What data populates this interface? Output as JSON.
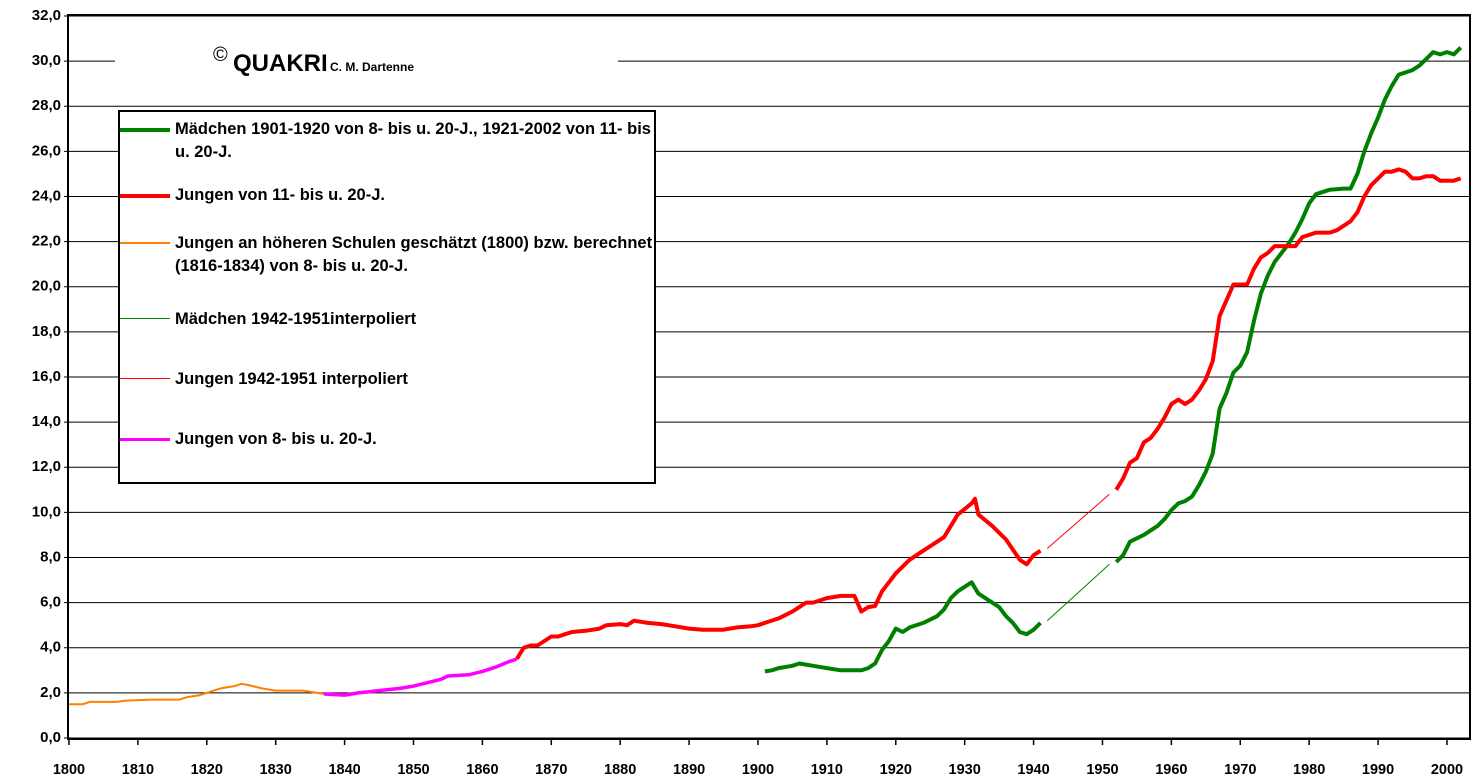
{
  "chart_data": {
    "type": "line",
    "copyright": {
      "symbol": "©",
      "name": "QUAKRI",
      "author": "C. M. Dartenne"
    },
    "xlim": [
      1800,
      2003.2
    ],
    "ylim": [
      0,
      32
    ],
    "xticks": [
      1800,
      1810,
      1820,
      1830,
      1840,
      1850,
      1860,
      1870,
      1880,
      1890,
      1900,
      1910,
      1920,
      1930,
      1940,
      1950,
      1960,
      1970,
      1980,
      1990,
      2000
    ],
    "yticks": [
      {
        "value": 0,
        "label": "0,0"
      },
      {
        "value": 2,
        "label": "2,0"
      },
      {
        "value": 4,
        "label": "4,0"
      },
      {
        "value": 6,
        "label": "6,0"
      },
      {
        "value": 8,
        "label": "8,0"
      },
      {
        "value": 10,
        "label": "10,0"
      },
      {
        "value": 12,
        "label": "12,0"
      },
      {
        "value": 14,
        "label": "14,0"
      },
      {
        "value": 16,
        "label": "16,0"
      },
      {
        "value": 18,
        "label": "18,0"
      },
      {
        "value": 20,
        "label": "20,0"
      },
      {
        "value": 22,
        "label": "22,0"
      },
      {
        "value": 24,
        "label": "24,0"
      },
      {
        "value": 26,
        "label": "26,0"
      },
      {
        "value": 28,
        "label": "28,0"
      },
      {
        "value": 30,
        "label": "30,0"
      },
      {
        "value": 32,
        "label": "32,0"
      }
    ],
    "grid": true,
    "series": [
      {
        "name": "Mädchen 1901-1920 von 8- bis u. 20-J., 1921-2002 von 11- bis u. 20-J.",
        "color": "#008000",
        "width": 4,
        "x": [
          1901,
          1902,
          1903,
          1905,
          1906,
          1908,
          1910,
          1912,
          1914,
          1915,
          1916,
          1917,
          1918,
          1919,
          1920,
          1921,
          1922,
          1924,
          1926,
          1927,
          1928,
          1929,
          1931,
          1932,
          1933,
          1935,
          1936,
          1937,
          1938,
          1939,
          1940,
          1941,
          1946,
          1952,
          1953,
          1954,
          1956,
          1958,
          1959,
          1960,
          1961,
          1962,
          1963,
          1964,
          1965,
          1966,
          1967,
          1968,
          1969,
          1970,
          1971,
          1972,
          1973,
          1974,
          1975,
          1976,
          1977,
          1978,
          1979,
          1980,
          1981,
          1983,
          1985,
          1986,
          1987,
          1988,
          1989,
          1990,
          1991,
          1992,
          1993,
          1995,
          1996,
          1997,
          1998,
          1999,
          2000,
          2001,
          2002
        ],
        "values": [
          2.95,
          3.0,
          3.1,
          3.2,
          3.3,
          3.2,
          3.1,
          3.0,
          3.0,
          3.0,
          3.1,
          3.3,
          3.9,
          4.3,
          4.85,
          4.7,
          4.9,
          5.1,
          5.4,
          5.7,
          6.2,
          6.5,
          6.9,
          6.4,
          6.2,
          5.8,
          5.4,
          5.1,
          4.7,
          4.6,
          4.8,
          5.1,
          null,
          7.8,
          8.1,
          8.7,
          9.0,
          9.4,
          9.7,
          10.1,
          10.4,
          10.5,
          10.7,
          11.2,
          11.8,
          12.6,
          14.6,
          15.3,
          16.2,
          16.5,
          17.1,
          18.5,
          19.7,
          20.5,
          21.1,
          21.5,
          21.9,
          22.4,
          23.0,
          23.7,
          24.1,
          24.3,
          24.35,
          24.35,
          25.0,
          26.0,
          26.8,
          27.5,
          28.3,
          28.9,
          29.4,
          29.6,
          29.8,
          30.1,
          30.4,
          30.3,
          30.4,
          30.3,
          30.6
        ]
      },
      {
        "name": "Jungen von 11- bis u. 20-J.",
        "color": "#ff0000",
        "width": 4,
        "x": [
          1865,
          1866,
          1867,
          1868,
          1869,
          1870,
          1871,
          1872,
          1873,
          1875,
          1877,
          1878,
          1880,
          1881,
          1882,
          1884,
          1886,
          1888,
          1890,
          1892,
          1895,
          1897,
          1899,
          1900,
          1901,
          1903,
          1905,
          1907,
          1908,
          1910,
          1912,
          1914,
          1915,
          1916,
          1917,
          1918,
          1920,
          1922,
          1924,
          1927,
          1929,
          1931,
          1931.5,
          1932,
          1934,
          1936,
          1938,
          1939,
          1940,
          1941,
          1946,
          1952,
          1953,
          1954,
          1955,
          1956,
          1957,
          1958,
          1959,
          1960,
          1961,
          1962,
          1963,
          1964,
          1965,
          1966,
          1967,
          1968,
          1969,
          1970,
          1971,
          1972,
          1973,
          1974,
          1975,
          1976,
          1977,
          1978,
          1979,
          1980,
          1981,
          1982,
          1983,
          1984,
          1985,
          1986,
          1987,
          1988,
          1989,
          1990,
          1991,
          1992,
          1993,
          1994,
          1995,
          1996,
          1997,
          1998,
          1999,
          2000,
          2001,
          2002
        ],
        "values": [
          3.5,
          4.0,
          4.1,
          4.1,
          4.3,
          4.5,
          4.5,
          4.6,
          4.7,
          4.75,
          4.85,
          5.0,
          5.05,
          5.0,
          5.2,
          5.1,
          5.05,
          4.95,
          4.85,
          4.8,
          4.8,
          4.9,
          4.95,
          5.0,
          5.1,
          5.3,
          5.6,
          6.0,
          6.0,
          6.2,
          6.3,
          6.3,
          5.6,
          5.8,
          5.85,
          6.5,
          7.3,
          7.9,
          8.3,
          8.9,
          9.9,
          10.4,
          10.6,
          9.9,
          9.4,
          8.8,
          7.9,
          7.7,
          8.1,
          8.3,
          null,
          11.0,
          11.5,
          12.2,
          12.4,
          13.1,
          13.3,
          13.7,
          14.2,
          14.8,
          15.0,
          14.8,
          15.0,
          15.4,
          15.9,
          16.7,
          18.7,
          19.4,
          20.1,
          20.1,
          20.1,
          20.8,
          21.3,
          21.5,
          21.8,
          21.8,
          21.8,
          21.8,
          22.2,
          22.3,
          22.4,
          22.4,
          22.4,
          22.5,
          22.7,
          22.9,
          23.3,
          24.0,
          24.5,
          24.8,
          25.1,
          25.1,
          25.2,
          25.1,
          24.8,
          24.8,
          24.9,
          24.9,
          24.7,
          24.7,
          24.7,
          24.8
        ]
      },
      {
        "name": "Jungen an höheren Schulen geschätzt (1800) bzw. berechnet (1816-1834) von 8- bis u. 20-J.",
        "color": "#ff8000",
        "width": 2,
        "x": [
          1800,
          1802,
          1803,
          1807,
          1808,
          1812,
          1816,
          1817,
          1819,
          1820,
          1821,
          1822,
          1824,
          1825,
          1826,
          1828,
          1830,
          1834,
          1837
        ],
        "values": [
          1.5,
          1.5,
          1.6,
          1.6,
          1.65,
          1.7,
          1.7,
          1.8,
          1.9,
          2.0,
          2.1,
          2.2,
          2.3,
          2.4,
          2.35,
          2.2,
          2.1,
          2.1,
          1.95
        ]
      },
      {
        "name": "Mädchen 1942-1951interpoliert",
        "color": "#008000",
        "width": 1,
        "x": [
          1942,
          1951
        ],
        "values": [
          5.2,
          7.7
        ]
      },
      {
        "name": "Jungen 1942-1951 interpoliert",
        "color": "#ff0000",
        "width": 1,
        "x": [
          1942,
          1951
        ],
        "values": [
          8.4,
          10.8
        ]
      },
      {
        "name": "Jungen von 8- bis u. 20-J.",
        "color": "#ff00ff",
        "width": 3.5,
        "x": [
          1837,
          1840,
          1842,
          1845,
          1848,
          1850,
          1852,
          1854,
          1855,
          1858,
          1860,
          1862,
          1864,
          1865
        ],
        "values": [
          1.95,
          1.9,
          2.0,
          2.1,
          2.2,
          2.3,
          2.45,
          2.6,
          2.75,
          2.8,
          2.95,
          3.15,
          3.4,
          3.5
        ]
      }
    ]
  }
}
